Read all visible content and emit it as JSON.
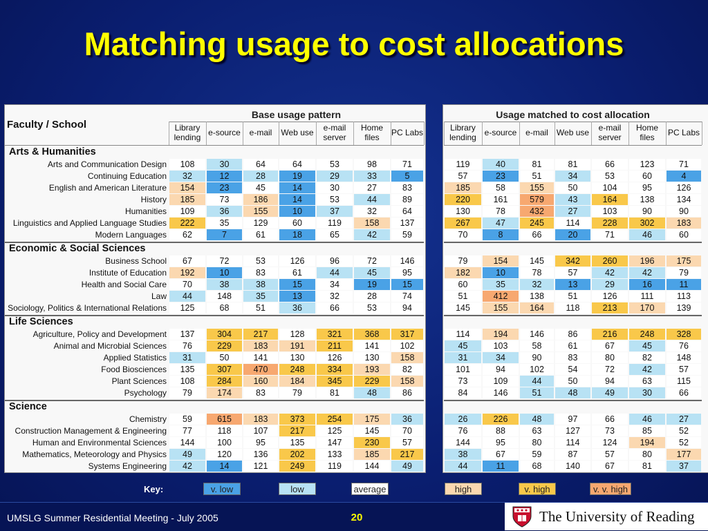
{
  "title": "Matching usage to cost allocations",
  "faculty_header": "Faculty / School",
  "base_title": "Base usage pattern",
  "matched_title": "Usage matched to cost allocation",
  "columns": [
    [
      "Library",
      "lending"
    ],
    [
      "e-source"
    ],
    [
      "e-mail"
    ],
    [
      "Web use"
    ],
    [
      "e-mail",
      "server"
    ],
    [
      "Home",
      "files"
    ],
    [
      "PC Labs"
    ]
  ],
  "sections": [
    {
      "name": "Arts & Humanities",
      "rows": [
        {
          "dept": "Arts and Communication Design",
          "base": [
            108,
            30,
            64,
            64,
            53,
            98,
            71
          ],
          "base_lvl": [
            "avg",
            "low",
            "avg",
            "avg",
            "avg",
            "avg",
            "avg"
          ],
          "matched": [
            119,
            40,
            81,
            81,
            66,
            123,
            71
          ],
          "matched_lvl": [
            "avg",
            "low",
            "avg",
            "avg",
            "avg",
            "avg",
            "avg"
          ]
        },
        {
          "dept": "Continuing Education",
          "base": [
            32,
            12,
            28,
            19,
            29,
            33,
            5
          ],
          "base_lvl": [
            "low",
            "vlow",
            "low",
            "vlow",
            "low",
            "low",
            "vlow"
          ],
          "matched": [
            57,
            23,
            51,
            34,
            53,
            60,
            4
          ],
          "matched_lvl": [
            "avg",
            "vlow",
            "avg",
            "low",
            "avg",
            "avg",
            "vlow"
          ]
        },
        {
          "dept": "English and American Literature",
          "base": [
            154,
            23,
            45,
            14,
            30,
            27,
            83
          ],
          "base_lvl": [
            "high",
            "vlow",
            "avg",
            "vlow",
            "avg",
            "avg",
            "avg"
          ],
          "matched": [
            185,
            58,
            155,
            50,
            104,
            95,
            126
          ],
          "matched_lvl": [
            "high",
            "avg",
            "high",
            "avg",
            "avg",
            "avg",
            "avg"
          ]
        },
        {
          "dept": "History",
          "base": [
            185,
            73,
            186,
            14,
            53,
            44,
            89
          ],
          "base_lvl": [
            "high",
            "avg",
            "high",
            "vlow",
            "avg",
            "low",
            "avg"
          ],
          "matched": [
            220,
            161,
            579,
            43,
            164,
            138,
            134
          ],
          "matched_lvl": [
            "vhigh",
            "avg",
            "vvhigh",
            "low",
            "vhigh",
            "avg",
            "avg"
          ]
        },
        {
          "dept": "Humanities",
          "base": [
            109,
            36,
            155,
            10,
            37,
            32,
            64
          ],
          "base_lvl": [
            "avg",
            "low",
            "high",
            "vlow",
            "low",
            "avg",
            "avg"
          ],
          "matched": [
            130,
            78,
            432,
            27,
            103,
            90,
            90
          ],
          "matched_lvl": [
            "avg",
            "avg",
            "vvhigh",
            "low",
            "avg",
            "avg",
            "avg"
          ]
        },
        {
          "dept": "Linguistics and Applied Language Studies",
          "base": [
            222,
            35,
            129,
            60,
            119,
            158,
            137
          ],
          "base_lvl": [
            "vhigh",
            "avg",
            "avg",
            "avg",
            "avg",
            "high",
            "avg"
          ],
          "matched": [
            267,
            47,
            245,
            114,
            228,
            302,
            183
          ],
          "matched_lvl": [
            "vhigh",
            "low",
            "vhigh",
            "avg",
            "vhigh",
            "vhigh",
            "high"
          ]
        },
        {
          "dept": "Modern Languages",
          "base": [
            62,
            7,
            61,
            18,
            65,
            42,
            59
          ],
          "base_lvl": [
            "avg",
            "vlow",
            "avg",
            "vlow",
            "avg",
            "low",
            "avg"
          ],
          "matched": [
            70,
            8,
            66,
            20,
            71,
            46,
            60
          ],
          "matched_lvl": [
            "avg",
            "vlow",
            "avg",
            "vlow",
            "avg",
            "low",
            "avg"
          ]
        }
      ]
    },
    {
      "name": "Economic & Social Sciences",
      "rows": [
        {
          "dept": "Business School",
          "base": [
            67,
            72,
            53,
            126,
            96,
            72,
            146
          ],
          "base_lvl": [
            "avg",
            "avg",
            "avg",
            "avg",
            "avg",
            "avg",
            "avg"
          ],
          "matched": [
            79,
            154,
            145,
            342,
            260,
            196,
            175
          ],
          "matched_lvl": [
            "avg",
            "high",
            "avg",
            "vhigh",
            "vhigh",
            "high",
            "high"
          ]
        },
        {
          "dept": "Institute of Education",
          "base": [
            192,
            10,
            83,
            61,
            44,
            45,
            95
          ],
          "base_lvl": [
            "high",
            "vlow",
            "avg",
            "avg",
            "low",
            "low",
            "avg"
          ],
          "matched": [
            182,
            10,
            78,
            57,
            42,
            42,
            79
          ],
          "matched_lvl": [
            "high",
            "vlow",
            "avg",
            "avg",
            "low",
            "low",
            "avg"
          ]
        },
        {
          "dept": "Health and Social Care",
          "base": [
            70,
            38,
            38,
            15,
            34,
            19,
            15
          ],
          "base_lvl": [
            "avg",
            "low",
            "low",
            "vlow",
            "avg",
            "vlow",
            "vlow"
          ],
          "matched": [
            60,
            35,
            32,
            13,
            29,
            16,
            11
          ],
          "matched_lvl": [
            "avg",
            "low",
            "low",
            "vlow",
            "low",
            "vlow",
            "vlow"
          ]
        },
        {
          "dept": "Law",
          "base": [
            44,
            148,
            35,
            13,
            32,
            28,
            74
          ],
          "base_lvl": [
            "low",
            "avg",
            "low",
            "vlow",
            "avg",
            "avg",
            "avg"
          ],
          "matched": [
            51,
            412,
            138,
            51,
            126,
            111,
            113
          ],
          "matched_lvl": [
            "avg",
            "vvhigh",
            "avg",
            "avg",
            "avg",
            "avg",
            "avg"
          ]
        },
        {
          "dept": "Sociology, Politics & International Relations",
          "base": [
            125,
            68,
            51,
            36,
            66,
            53,
            94
          ],
          "base_lvl": [
            "avg",
            "avg",
            "avg",
            "low",
            "avg",
            "avg",
            "avg"
          ],
          "matched": [
            145,
            155,
            164,
            118,
            213,
            170,
            139
          ],
          "matched_lvl": [
            "avg",
            "high",
            "high",
            "avg",
            "vhigh",
            "high",
            "avg"
          ]
        }
      ]
    },
    {
      "name": "Life Sciences",
      "rows": [
        {
          "dept": "Agriculture, Policy and Development",
          "base": [
            137,
            304,
            217,
            128,
            321,
            368,
            317
          ],
          "base_lvl": [
            "avg",
            "vhigh",
            "vhigh",
            "avg",
            "vhigh",
            "vhigh",
            "vhigh"
          ],
          "matched": [
            114,
            194,
            146,
            86,
            216,
            248,
            328
          ],
          "matched_lvl": [
            "avg",
            "high",
            "avg",
            "avg",
            "vhigh",
            "vhigh",
            "vhigh"
          ]
        },
        {
          "dept": "Animal and Microbial Sciences",
          "base": [
            76,
            229,
            183,
            191,
            211,
            141,
            102
          ],
          "base_lvl": [
            "avg",
            "vhigh",
            "high",
            "high",
            "vhigh",
            "avg",
            "avg"
          ],
          "matched": [
            45,
            103,
            58,
            61,
            67,
            45,
            76
          ],
          "matched_lvl": [
            "low",
            "avg",
            "avg",
            "avg",
            "avg",
            "low",
            "avg"
          ]
        },
        {
          "dept": "Applied Statistics",
          "base": [
            31,
            50,
            141,
            130,
            126,
            130,
            158
          ],
          "base_lvl": [
            "low",
            "avg",
            "avg",
            "avg",
            "avg",
            "avg",
            "high"
          ],
          "matched": [
            31,
            34,
            90,
            83,
            80,
            82,
            148
          ],
          "matched_lvl": [
            "low",
            "low",
            "avg",
            "avg",
            "avg",
            "avg",
            "avg"
          ]
        },
        {
          "dept": "Food Biosciences",
          "base": [
            135,
            307,
            470,
            248,
            334,
            193,
            82
          ],
          "base_lvl": [
            "avg",
            "vhigh",
            "vvhigh",
            "vhigh",
            "vhigh",
            "high",
            "avg"
          ],
          "matched": [
            101,
            94,
            102,
            54,
            72,
            42,
            57
          ],
          "matched_lvl": [
            "avg",
            "avg",
            "avg",
            "avg",
            "avg",
            "low",
            "avg"
          ]
        },
        {
          "dept": "Plant Sciences",
          "base": [
            108,
            284,
            160,
            184,
            345,
            229,
            158
          ],
          "base_lvl": [
            "avg",
            "vhigh",
            "high",
            "high",
            "vhigh",
            "vhigh",
            "high"
          ],
          "matched": [
            73,
            109,
            44,
            50,
            94,
            63,
            115
          ],
          "matched_lvl": [
            "avg",
            "avg",
            "low",
            "avg",
            "avg",
            "avg",
            "avg"
          ]
        },
        {
          "dept": "Psychology",
          "base": [
            79,
            174,
            83,
            79,
            81,
            48,
            86
          ],
          "base_lvl": [
            "avg",
            "high",
            "avg",
            "avg",
            "avg",
            "low",
            "avg"
          ],
          "matched": [
            84,
            146,
            51,
            48,
            49,
            30,
            66
          ],
          "matched_lvl": [
            "avg",
            "avg",
            "low",
            "low",
            "low",
            "low",
            "avg"
          ]
        }
      ]
    },
    {
      "name": "Science",
      "rows": [
        {
          "dept": "Chemistry",
          "base": [
            59,
            615,
            183,
            373,
            254,
            175,
            36
          ],
          "base_lvl": [
            "avg",
            "vvhigh",
            "high",
            "vhigh",
            "vhigh",
            "high",
            "low"
          ],
          "matched": [
            26,
            226,
            48,
            97,
            66,
            46,
            27
          ],
          "matched_lvl": [
            "low",
            "vhigh",
            "low",
            "avg",
            "avg",
            "low",
            "low"
          ]
        },
        {
          "dept": "Construction Management & Engineering",
          "base": [
            77,
            118,
            107,
            217,
            125,
            145,
            70
          ],
          "base_lvl": [
            "avg",
            "avg",
            "avg",
            "vhigh",
            "avg",
            "avg",
            "avg"
          ],
          "matched": [
            76,
            88,
            63,
            127,
            73,
            85,
            52
          ],
          "matched_lvl": [
            "avg",
            "avg",
            "avg",
            "avg",
            "avg",
            "avg",
            "avg"
          ]
        },
        {
          "dept": "Human and Environmental Sciences",
          "base": [
            144,
            100,
            95,
            135,
            147,
            230,
            57
          ],
          "base_lvl": [
            "avg",
            "avg",
            "avg",
            "avg",
            "avg",
            "vhigh",
            "avg"
          ],
          "matched": [
            144,
            95,
            80,
            114,
            124,
            194,
            52
          ],
          "matched_lvl": [
            "avg",
            "avg",
            "avg",
            "avg",
            "avg",
            "high",
            "avg"
          ]
        },
        {
          "dept": "Mathematics, Meteorology and Physics",
          "base": [
            49,
            120,
            136,
            202,
            133,
            185,
            217
          ],
          "base_lvl": [
            "low",
            "avg",
            "avg",
            "vhigh",
            "avg",
            "high",
            "vhigh"
          ],
          "matched": [
            38,
            67,
            59,
            87,
            57,
            80,
            177
          ],
          "matched_lvl": [
            "low",
            "avg",
            "avg",
            "avg",
            "avg",
            "avg",
            "high"
          ]
        },
        {
          "dept": "Systems Engineering",
          "base": [
            42,
            14,
            121,
            249,
            119,
            144,
            49
          ],
          "base_lvl": [
            "low",
            "vlow",
            "avg",
            "vhigh",
            "avg",
            "avg",
            "low"
          ],
          "matched": [
            44,
            11,
            68,
            140,
            67,
            81,
            37
          ],
          "matched_lvl": [
            "low",
            "vlow",
            "avg",
            "avg",
            "avg",
            "avg",
            "low"
          ]
        }
      ]
    }
  ],
  "key": {
    "label": "Key:",
    "items": [
      {
        "text": "v. low",
        "level": "vlow"
      },
      {
        "text": "low",
        "level": "low"
      },
      {
        "text": "average",
        "level": "avg"
      },
      {
        "text": "high",
        "level": "high"
      },
      {
        "text": "v. high",
        "level": "vhigh"
      },
      {
        "text": "v. v. high",
        "level": "vvhigh"
      }
    ]
  },
  "footer": {
    "meeting": "UMSLG Summer Residential Meeting - July 2005",
    "page": "20",
    "university": "The University of Reading"
  }
}
